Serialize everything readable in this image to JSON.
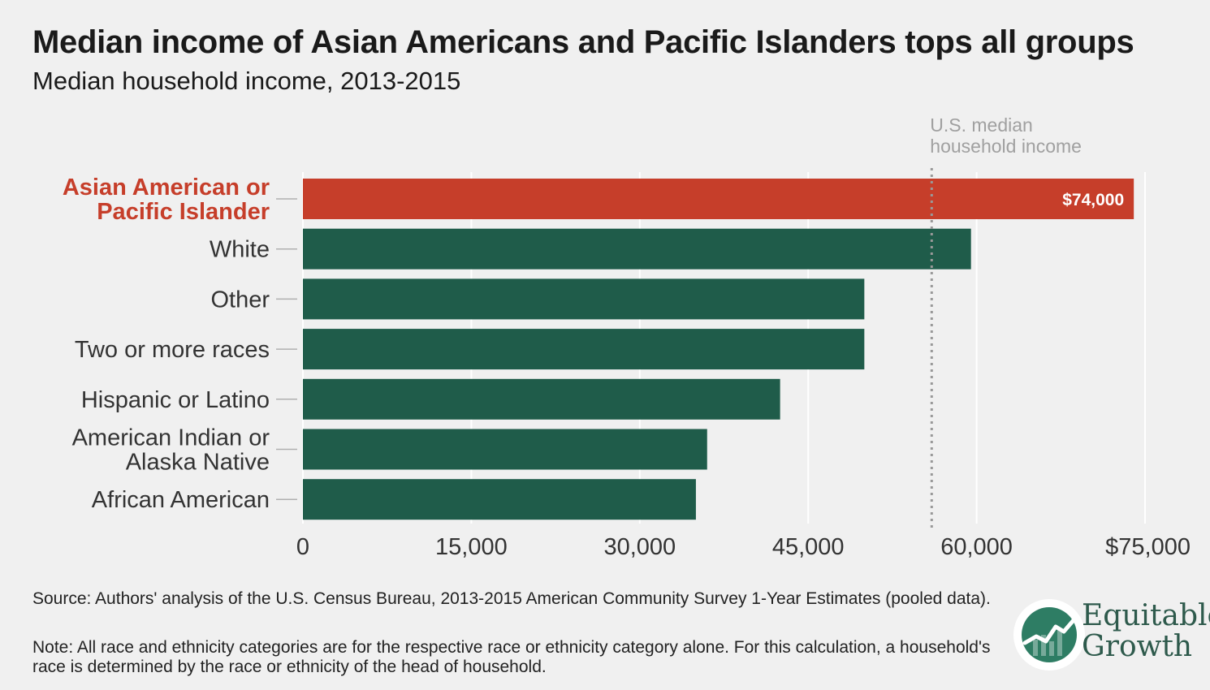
{
  "title": "Median income of Asian Americans and Pacific Islanders tops all groups",
  "subtitle": "Median household income, 2013-2015",
  "chart_data": {
    "type": "bar",
    "orientation": "horizontal",
    "categories": [
      [
        "Asian American or",
        "Pacific Islander"
      ],
      [
        "White"
      ],
      [
        "Other"
      ],
      [
        "Two or more races"
      ],
      [
        "Hispanic or Latino"
      ],
      [
        "American Indian or",
        "Alaska Native"
      ],
      [
        "African American"
      ]
    ],
    "values": [
      74000,
      59500,
      50000,
      50000,
      42500,
      36000,
      35000
    ],
    "highlight_index": 0,
    "data_labels": [
      "$74,000",
      "",
      "",
      "",
      "",
      "",
      ""
    ],
    "xlim": [
      0,
      75000
    ],
    "x_ticks": [
      0,
      15000,
      30000,
      45000,
      60000,
      75000
    ],
    "x_tick_labels": [
      "0",
      "15,000",
      "30,000",
      "45,000",
      "60,000",
      "$75,000"
    ],
    "reference_line": {
      "value": 56000,
      "label": [
        "U.S. median",
        "household income"
      ],
      "style": "dotted"
    },
    "grid": "vertical",
    "colors": {
      "highlight": "#c63e2a",
      "bar": "#1f5c4a",
      "grid": "#ffffff",
      "reference": "#999999",
      "highlight_label": "#c63e2a",
      "label": "#333333"
    }
  },
  "footer": {
    "source": "Source: Authors' analysis of the U.S. Census Bureau, 2013-2015 American Community Survey 1-Year Estimates (pooled data).",
    "note": "Note: All race and ethnicity categories are for the respective race or ethnicity category alone. For this calculation, a household's race is determined by the race or ethnicity of the head of household."
  },
  "logo": {
    "icon": "equitable-growth-chart-icon",
    "line1": "Equitable",
    "line2": "Growth",
    "colors": {
      "green": "#2e7d64",
      "dark": "#2e5a4c"
    }
  }
}
